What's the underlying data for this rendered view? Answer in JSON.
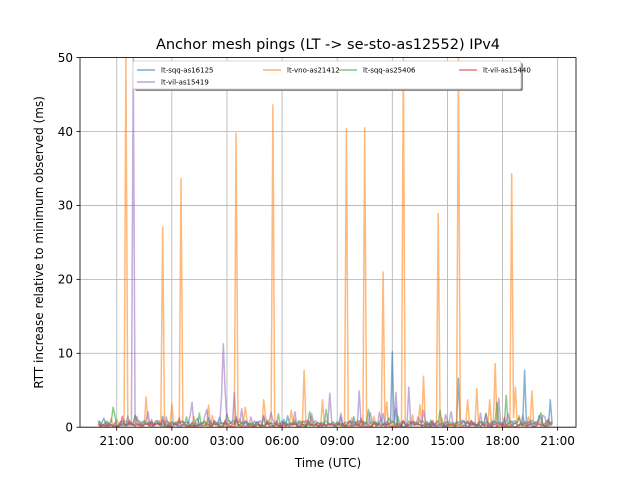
{
  "chart_data": {
    "type": "line",
    "title": "Anchor mesh pings (LT -> se-sto-as12552) IPv4",
    "xlabel": "Time (UTC)",
    "ylabel": "RTT increase relative to minimum observed (ms)",
    "x_ticks": [
      "21:00",
      "00:00",
      "03:00",
      "06:00",
      "09:00",
      "12:00",
      "15:00",
      "18:00",
      "21:00"
    ],
    "x_tick_hours": [
      21,
      24,
      27,
      30,
      33,
      36,
      39,
      42,
      45
    ],
    "xlim": [
      19.0,
      46.0
    ],
    "y_ticks": [
      "0",
      "10",
      "20",
      "30",
      "40",
      "50"
    ],
    "y_tick_values": [
      0,
      10,
      20,
      30,
      40,
      50
    ],
    "ylim": [
      0,
      50
    ],
    "grid": true,
    "legend_position": "top",
    "legend_columns": 4,
    "series": [
      {
        "name": "lt-sqq-as16125",
        "color": "#1f77b4",
        "baseline": 0.4,
        "spikes": [
          [
            20.3,
            1.2
          ],
          [
            25.4,
            1.2
          ],
          [
            33.9,
            1.4
          ],
          [
            36.0,
            10.2
          ],
          [
            36.2,
            2.6
          ],
          [
            39.6,
            6.6
          ],
          [
            43.2,
            7.7
          ],
          [
            44.0,
            1.6
          ],
          [
            44.6,
            3.7
          ]
        ]
      },
      {
        "name": "lt-vno-as21412",
        "color": "#ff7f0e",
        "baseline": 0.3,
        "spikes": [
          [
            21.55,
            50
          ],
          [
            22.0,
            1.6
          ],
          [
            22.6,
            4.1
          ],
          [
            23.55,
            27.1
          ],
          [
            24.0,
            3.2
          ],
          [
            24.55,
            33.6
          ],
          [
            26.0,
            3.0
          ],
          [
            26.2,
            1.6
          ],
          [
            27.55,
            39.8
          ],
          [
            28.0,
            2.7
          ],
          [
            29.0,
            3.7
          ],
          [
            29.55,
            43.6
          ],
          [
            30.5,
            2.3
          ],
          [
            31.2,
            7.7
          ],
          [
            32.2,
            3.7
          ],
          [
            33.5,
            40.4
          ],
          [
            34.5,
            40.5
          ],
          [
            35.5,
            21.0
          ],
          [
            35.7,
            3.4
          ],
          [
            36.6,
            50
          ],
          [
            37.1,
            1.7
          ],
          [
            37.5,
            3.0
          ],
          [
            37.75,
            6.9
          ],
          [
            38.5,
            28.9
          ],
          [
            39.6,
            50
          ],
          [
            40.1,
            3.7
          ],
          [
            40.6,
            5.2
          ],
          [
            41.3,
            3.7
          ],
          [
            41.6,
            8.6
          ],
          [
            42.5,
            34.3
          ],
          [
            42.75,
            5.4
          ],
          [
            43.6,
            4.9
          ],
          [
            44.0,
            1.1
          ]
        ]
      },
      {
        "name": "lt-sqq-as25406",
        "color": "#2ca02c",
        "baseline": 0.5,
        "spikes": [
          [
            20.8,
            2.7
          ],
          [
            22.0,
            1.6
          ],
          [
            24.8,
            1.4
          ],
          [
            29.8,
            1.8
          ],
          [
            31.5,
            2.1
          ],
          [
            32.4,
            2.4
          ],
          [
            34.7,
            2.4
          ],
          [
            36.3,
            1.5
          ],
          [
            38.6,
            2.3
          ],
          [
            41.1,
            1.9
          ],
          [
            41.7,
            3.4
          ],
          [
            42.2,
            4.3
          ]
        ]
      },
      {
        "name": "lt-vil-as15440",
        "color": "#d62728",
        "baseline": 0.25,
        "spikes": [
          [
            23.5,
            0.9
          ],
          [
            26.9,
            0.9
          ],
          [
            29.2,
            0.9
          ],
          [
            31.4,
            0.9
          ],
          [
            34.3,
            1.2
          ],
          [
            36.6,
            0.9
          ],
          [
            38.2,
            0.9
          ],
          [
            40.3,
            0.9
          ],
          [
            42.1,
            1.3
          ]
        ]
      },
      {
        "name": "lt-vil-as15419",
        "color": "#9467bd",
        "baseline": 0.5,
        "spikes": [
          [
            21.95,
            50
          ],
          [
            21.4,
            0.9
          ],
          [
            22.7,
            2.1
          ],
          [
            23.7,
            1.4
          ],
          [
            25.0,
            1.6
          ],
          [
            25.1,
            3.4
          ],
          [
            25.9,
            2.4
          ],
          [
            26.7,
            4.0
          ],
          [
            26.8,
            11.3
          ],
          [
            26.9,
            5.0
          ],
          [
            27.4,
            4.7
          ],
          [
            27.8,
            2.5
          ],
          [
            28.3,
            1.4
          ],
          [
            29.0,
            1.6
          ],
          [
            30.7,
            2.1
          ],
          [
            31.6,
            1.9
          ],
          [
            32.6,
            4.6
          ],
          [
            33.2,
            1.9
          ],
          [
            34.2,
            4.9
          ],
          [
            34.8,
            2.0
          ],
          [
            35.3,
            2.0
          ],
          [
            36.2,
            4.7
          ],
          [
            36.9,
            5.4
          ],
          [
            37.4,
            1.4
          ],
          [
            37.7,
            2.3
          ],
          [
            38.9,
            1.7
          ],
          [
            39.2,
            2.1
          ],
          [
            41.1,
            1.8
          ],
          [
            41.8,
            3.9
          ],
          [
            43.1,
            1.6
          ],
          [
            43.6,
            1.0
          ],
          [
            44.2,
            1.6
          ]
        ]
      }
    ]
  }
}
